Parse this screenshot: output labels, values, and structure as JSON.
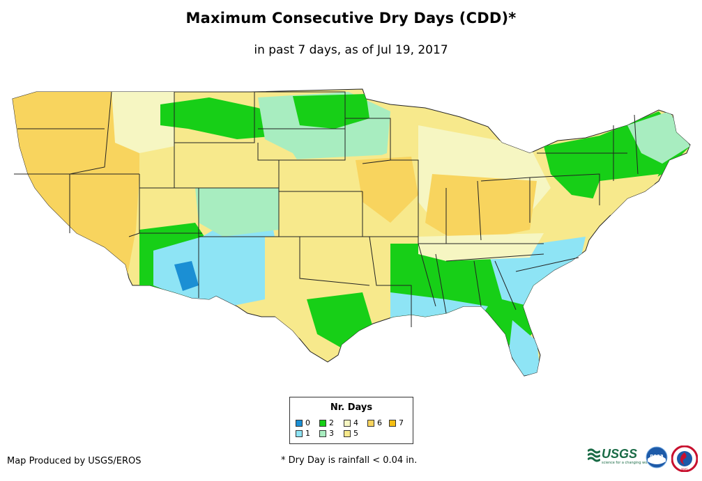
{
  "header": {
    "title": "Maximum Consecutive Dry Days (CDD)*",
    "subtitle": "in past 7 days, as of Jul 19, 2017"
  },
  "legend": {
    "title": "Nr. Days",
    "items": [
      {
        "label": "0",
        "color": "#1b8fd4"
      },
      {
        "label": "1",
        "color": "#8ee4f5"
      },
      {
        "label": "2",
        "color": "#17cf17"
      },
      {
        "label": "3",
        "color": "#a8edc0"
      },
      {
        "label": "4",
        "color": "#f6f6c2"
      },
      {
        "label": "5",
        "color": "#f7e98c"
      },
      {
        "label": "6",
        "color": "#f8d45e"
      },
      {
        "label": "7",
        "color": "#f5bf13"
      }
    ]
  },
  "footer": {
    "credit": "Map Produced by USGS/EROS",
    "note": "* Dry Day is rainfall < 0.04 in."
  },
  "logos": {
    "usgs": "USGS",
    "usgs_tagline": "science for a changing world",
    "noaa": "noaa",
    "nws": "NWS"
  },
  "colors": {
    "state_border": "#222222",
    "day0": "#1b8fd4",
    "day1": "#8ee4f5",
    "day2": "#17cf17",
    "day3": "#a8edc0",
    "day4": "#f6f6c2",
    "day5": "#f7e98c",
    "day6": "#f8d45e",
    "day7": "#f5bf13"
  }
}
